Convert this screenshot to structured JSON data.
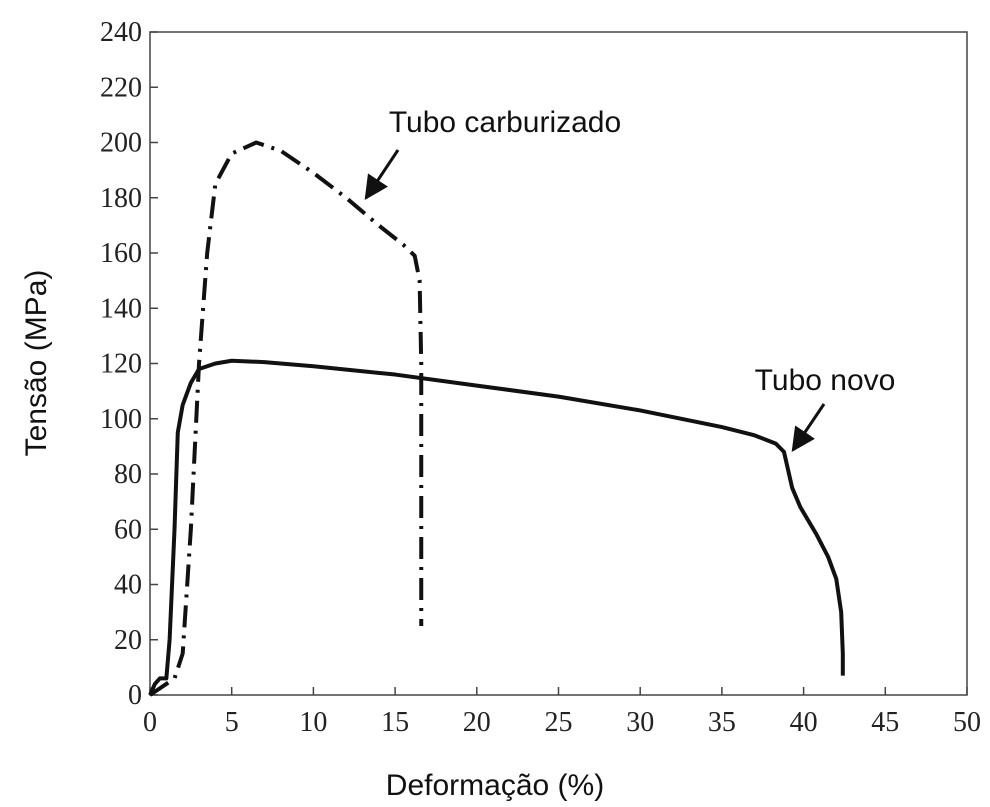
{
  "chart_data": {
    "type": "line",
    "xlabel": "Deformação (%)",
    "ylabel": "Tensão (MPa)",
    "xlim": [
      0,
      50
    ],
    "ylim": [
      0,
      240
    ],
    "xticks": [
      0,
      5,
      10,
      15,
      20,
      25,
      30,
      35,
      40,
      45,
      50
    ],
    "yticks": [
      0,
      20,
      40,
      60,
      80,
      100,
      120,
      140,
      160,
      180,
      200,
      220,
      240
    ],
    "annotations": [
      "Tubo carburizado",
      "Tubo novo"
    ],
    "series": [
      {
        "name": "Tubo novo",
        "color": "#111111",
        "style": "solid",
        "x": [
          0,
          0.3,
          0.6,
          1,
          1.2,
          1.5,
          1.7,
          2,
          2.5,
          3,
          4,
          5,
          7,
          10,
          15,
          20,
          25,
          30,
          35,
          37,
          38.3,
          38.8,
          39.3,
          39.8,
          40.8,
          41.5,
          42,
          42.3,
          42.4,
          42.4
        ],
        "values": [
          0,
          4,
          6,
          6,
          20,
          60,
          95,
          105,
          113,
          118,
          120,
          121,
          120.5,
          119,
          116,
          112,
          108,
          103,
          97,
          94,
          91,
          88,
          75,
          68,
          58,
          50,
          42,
          30,
          15,
          7
        ]
      },
      {
        "name": "Tubo carburizado",
        "color": "#111111",
        "style": "dashdot",
        "x": [
          0,
          1,
          1.5,
          2,
          2.5,
          3,
          3.5,
          4,
          5,
          6.5,
          8,
          10,
          12,
          14,
          15.5,
          16.2,
          16.5,
          16.6,
          16.6,
          16.6
        ],
        "values": [
          0,
          4,
          6,
          15,
          60,
          120,
          160,
          185,
          196,
          200,
          197,
          189,
          180,
          170,
          163,
          159,
          150,
          120,
          60,
          25
        ]
      }
    ]
  }
}
